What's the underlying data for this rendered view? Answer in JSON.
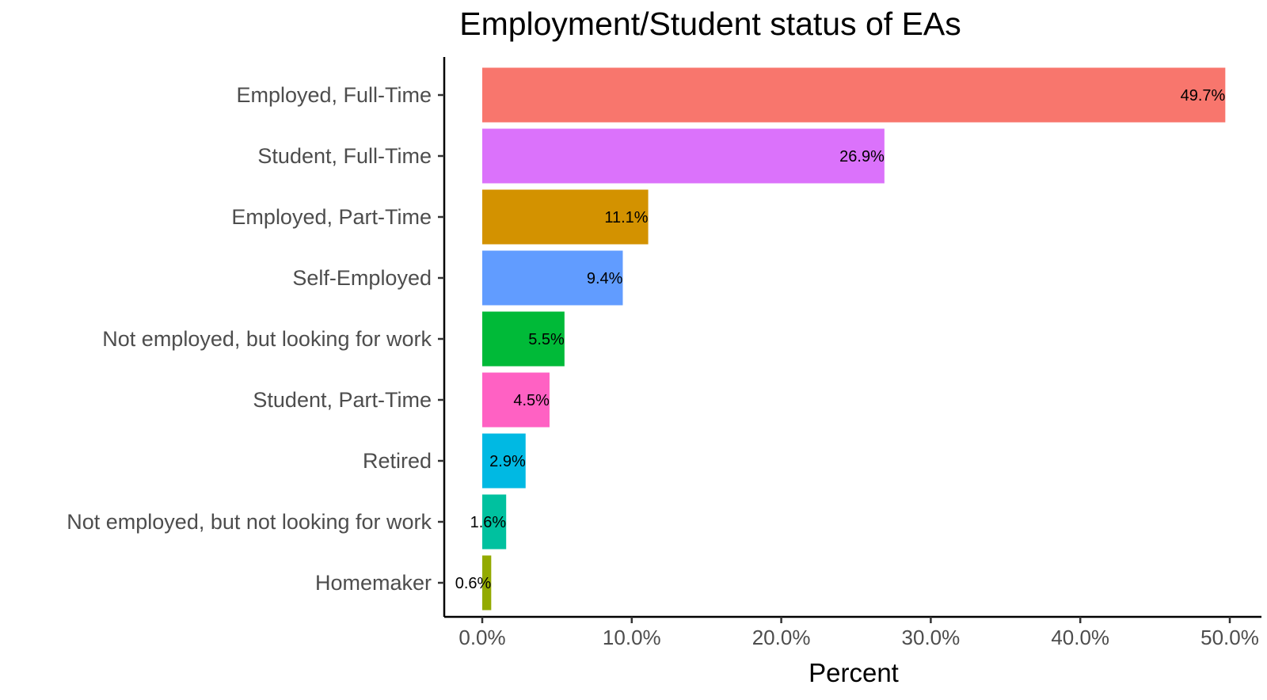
{
  "chart_data": {
    "type": "bar",
    "orientation": "horizontal",
    "title": "Employment/Student status of EAs",
    "xlabel": "Percent",
    "ylabel": "",
    "xlim": [
      0,
      50
    ],
    "xticks": [
      0,
      10,
      20,
      30,
      40,
      50
    ],
    "xtick_labels": [
      "0.0%",
      "10.0%",
      "20.0%",
      "30.0%",
      "40.0%",
      "50.0%"
    ],
    "categories": [
      "Employed, Full-Time",
      "Student, Full-Time",
      "Employed, Part-Time",
      "Self-Employed",
      "Not employed, but looking for work",
      "Student, Part-Time",
      "Retired",
      "Not employed, but not looking for work",
      "Homemaker"
    ],
    "values": [
      49.7,
      26.9,
      11.1,
      9.4,
      5.5,
      4.5,
      2.9,
      1.6,
      0.6
    ],
    "value_labels": [
      "49.7%",
      "26.9%",
      "11.1%",
      "9.4%",
      "5.5%",
      "4.5%",
      "2.9%",
      "1.6%",
      "0.6%"
    ],
    "colors": [
      "#F8766D",
      "#DB72FB",
      "#D39200",
      "#619CFF",
      "#00BA38",
      "#FF61C3",
      "#00B9E3",
      "#00C19F",
      "#93AA00"
    ],
    "grid": false,
    "legend": "none"
  }
}
